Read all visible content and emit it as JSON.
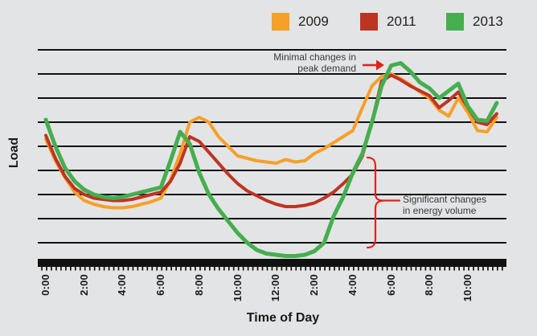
{
  "colors": {
    "background": "#E3E4E5",
    "grid": "#111111",
    "text": "#231F20",
    "annotation_text": "#3A3A3A",
    "annotation_red": "#E0231C",
    "series_2009": "#F5A028",
    "series_2011": "#BE3423",
    "series_2013": "#45AE4F"
  },
  "legend": {
    "items": [
      {
        "label": "2009",
        "color": "#F5A028"
      },
      {
        "label": "2011",
        "color": "#BE3423"
      },
      {
        "label": "2013",
        "color": "#45AE4F"
      }
    ]
  },
  "annotations": {
    "peak": {
      "line1": "Minimal changes in",
      "line2": "peak demand"
    },
    "volume": {
      "line1": "Significant changes",
      "line2": "in energy volume"
    }
  },
  "axes": {
    "y_label": "Load",
    "x_label": "Time of Day",
    "x_ticks": [
      "0:00",
      "2:00",
      "4:00",
      "6:00",
      "8:00",
      "10:00",
      "12:00",
      "2:00",
      "4:00",
      "6:00",
      "8:00",
      "10:00"
    ]
  },
  "chart_data": {
    "type": "line",
    "title": "",
    "xlabel": "Time of Day",
    "ylabel": "Load",
    "legend_position": "top",
    "grid": "horizontal-only",
    "y_axis_numeric_labels": false,
    "ylim": [
      0,
      10
    ],
    "gridlines_y": [
      1,
      2,
      3,
      4,
      5,
      6,
      7,
      8,
      9
    ],
    "x_hours": [
      0,
      0.5,
      1,
      1.5,
      2,
      2.5,
      3,
      3.5,
      4,
      4.5,
      5,
      5.5,
      6,
      6.5,
      7,
      7.5,
      8,
      8.5,
      9,
      9.5,
      10,
      10.5,
      11,
      11.5,
      12,
      12.5,
      13,
      13.5,
      14,
      14.5,
      15,
      15.5,
      16,
      16.5,
      17,
      17.5,
      18,
      18.5,
      19,
      19.5,
      20,
      20.5,
      21,
      21.5,
      22,
      22.5,
      23,
      23.5
    ],
    "x_tick_labels": [
      "0:00",
      "2:00",
      "4:00",
      "6:00",
      "8:00",
      "10:00",
      "12:00",
      "2:00",
      "4:00",
      "6:00",
      "8:00",
      "10:00"
    ],
    "series": [
      {
        "name": "2009",
        "color": "#F5A028",
        "values": [
          5.3,
          4.4,
          3.7,
          3.1,
          2.75,
          2.6,
          2.5,
          2.45,
          2.45,
          2.5,
          2.6,
          2.7,
          2.85,
          3.6,
          4.7,
          6.0,
          6.2,
          6.0,
          5.4,
          5.0,
          4.6,
          4.5,
          4.4,
          4.35,
          4.3,
          4.45,
          4.35,
          4.4,
          4.7,
          4.9,
          5.15,
          5.4,
          5.65,
          6.6,
          7.5,
          7.9,
          8.0,
          7.8,
          7.55,
          7.25,
          7.0,
          6.5,
          6.25,
          7.0,
          6.4,
          5.65,
          5.6,
          6.2
        ]
      },
      {
        "name": "2011",
        "color": "#BE3423",
        "values": [
          5.45,
          4.5,
          3.75,
          3.25,
          3.0,
          2.85,
          2.8,
          2.75,
          2.75,
          2.8,
          2.9,
          3.0,
          3.1,
          3.55,
          4.3,
          5.4,
          5.2,
          4.75,
          4.3,
          3.85,
          3.45,
          3.15,
          2.95,
          2.75,
          2.6,
          2.5,
          2.5,
          2.55,
          2.65,
          2.85,
          3.1,
          3.45,
          3.85,
          4.6,
          6.0,
          7.7,
          7.95,
          7.75,
          7.5,
          7.3,
          7.1,
          6.6,
          6.9,
          7.25,
          6.6,
          6.0,
          5.9,
          6.35
        ]
      },
      {
        "name": "2013",
        "color": "#45AE4F",
        "values": [
          6.1,
          5.0,
          4.1,
          3.55,
          3.2,
          3.0,
          2.9,
          2.85,
          2.9,
          3.0,
          3.1,
          3.2,
          3.3,
          4.4,
          5.6,
          5.1,
          3.9,
          3.0,
          2.4,
          1.9,
          1.4,
          1.0,
          0.7,
          0.55,
          0.5,
          0.45,
          0.45,
          0.5,
          0.65,
          1.0,
          2.1,
          2.9,
          3.9,
          4.7,
          6.0,
          7.5,
          8.35,
          8.45,
          8.1,
          7.65,
          7.4,
          7.0,
          7.3,
          7.6,
          6.65,
          6.1,
          6.05,
          6.8
        ]
      }
    ]
  }
}
